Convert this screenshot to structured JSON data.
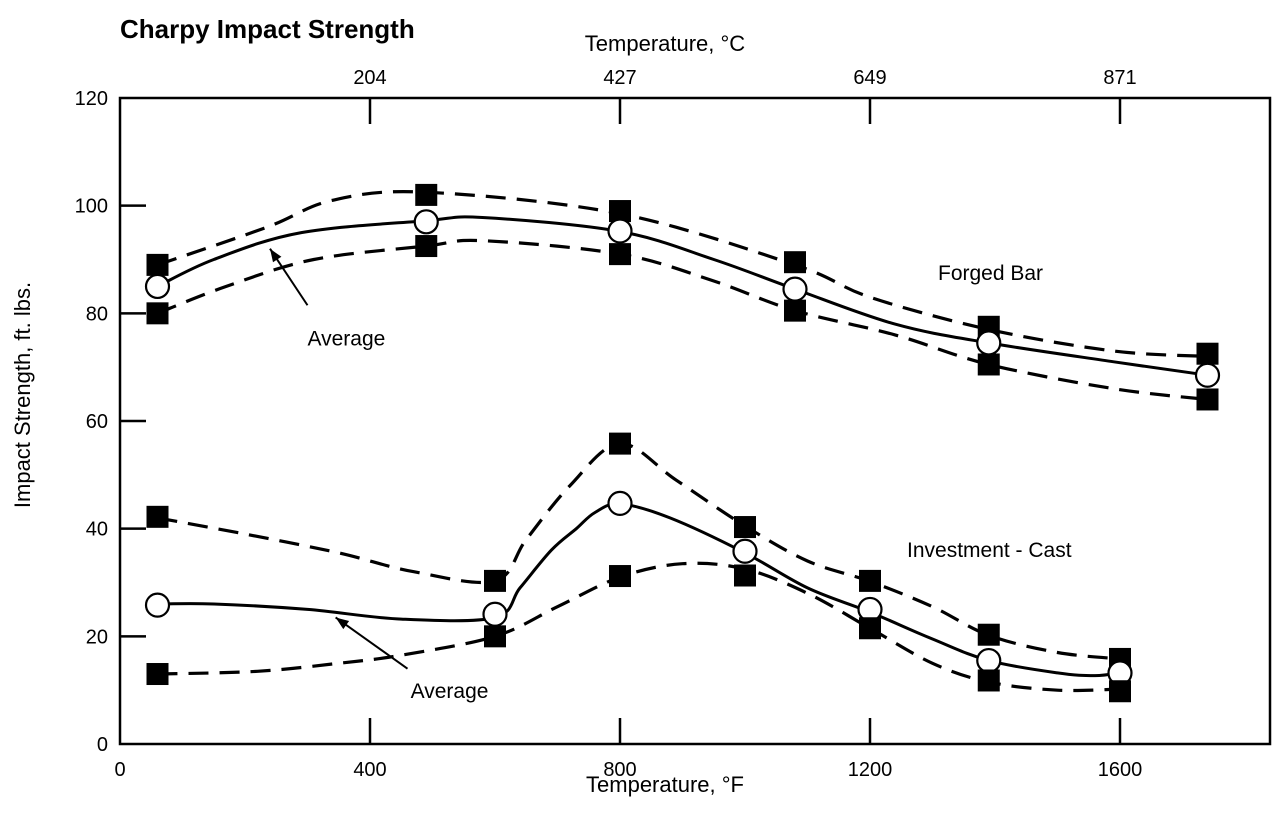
{
  "chart_data": {
    "type": "line",
    "title": "Charpy Impact Strength",
    "xlabel": "Temperature, °F",
    "x2label": "Temperature, °C",
    "ylabel": "Impact Strength, ft. lbs.",
    "xlim": [
      0,
      1840
    ],
    "ylim": [
      0,
      120
    ],
    "x_ticks": [
      0,
      400,
      800,
      1200,
      1600
    ],
    "y_ticks": [
      0,
      20,
      40,
      60,
      80,
      100,
      120
    ],
    "x2_ticks": [
      {
        "f": 400,
        "label": "204"
      },
      {
        "f": 800,
        "label": "427"
      },
      {
        "f": 1200,
        "label": "649"
      },
      {
        "f": 1600,
        "label": "871"
      }
    ],
    "grid": false,
    "groups": [
      {
        "label": "Forged Bar",
        "series": [
          {
            "style": "dashed",
            "points": [
              [
                60,
                89
              ],
              [
                235,
                96
              ],
              [
                340,
                101
              ],
              [
                490,
                102.5
              ],
              [
                800,
                98.5
              ],
              [
                1080,
                89
              ],
              [
                1200,
                83
              ],
              [
                1390,
                77
              ],
              [
                1590,
                73
              ],
              [
                1740,
                72
              ]
            ],
            "markers": [
              [
                60,
                89
              ],
              [
                490,
                102
              ],
              [
                800,
                99
              ],
              [
                1080,
                89.5
              ],
              [
                1390,
                77.5
              ],
              [
                1740,
                72.5
              ]
            ],
            "marker": "square"
          },
          {
            "style": "solid",
            "points": [
              [
                60,
                85
              ],
              [
                150,
                90
              ],
              [
                290,
                95
              ],
              [
                490,
                97.2
              ],
              [
                580,
                97.8
              ],
              [
                800,
                95.2
              ],
              [
                950,
                90
              ],
              [
                1080,
                84.5
              ],
              [
                1240,
                78
              ],
              [
                1390,
                74.5
              ],
              [
                1590,
                71
              ],
              [
                1740,
                68.5
              ]
            ],
            "markers": [
              [
                60,
                85
              ],
              [
                490,
                97
              ],
              [
                800,
                95.3
              ],
              [
                1080,
                84.5
              ],
              [
                1390,
                74.5
              ],
              [
                1740,
                68.5
              ]
            ],
            "marker": "circle"
          },
          {
            "style": "dashed",
            "points": [
              [
                60,
                80
              ],
              [
                170,
                85
              ],
              [
                310,
                90
              ],
              [
                490,
                92.5
              ],
              [
                580,
                93.5
              ],
              [
                800,
                91
              ],
              [
                950,
                86
              ],
              [
                1080,
                80.5
              ],
              [
                1240,
                76
              ],
              [
                1390,
                70.5
              ],
              [
                1590,
                66
              ],
              [
                1740,
                64
              ]
            ],
            "markers": [
              [
                60,
                80
              ],
              [
                490,
                92.5
              ],
              [
                800,
                91
              ],
              [
                1080,
                80.5
              ],
              [
                1390,
                70.5
              ],
              [
                1740,
                64
              ]
            ],
            "marker": "square"
          }
        ]
      },
      {
        "label": "Investment - Cast",
        "series": [
          {
            "style": "dashed",
            "points": [
              [
                60,
                42
              ],
              [
                200,
                39
              ],
              [
                350,
                35.5
              ],
              [
                470,
                32
              ],
              [
                600,
                30.3
              ],
              [
                650,
                38
              ],
              [
                720,
                48
              ],
              [
                800,
                55.8
              ],
              [
                890,
                49
              ],
              [
                1000,
                40.5
              ],
              [
                1100,
                34
              ],
              [
                1200,
                30.2
              ],
              [
                1300,
                25.5
              ],
              [
                1390,
                20.2
              ],
              [
                1500,
                17
              ],
              [
                1600,
                15.8
              ]
            ],
            "markers": [
              [
                60,
                42.2
              ],
              [
                600,
                30.3
              ],
              [
                800,
                55.8
              ],
              [
                1000,
                40.3
              ],
              [
                1200,
                30.3
              ],
              [
                1390,
                20.3
              ],
              [
                1600,
                15.8
              ]
            ],
            "marker": "square"
          },
          {
            "style": "solid",
            "points": [
              [
                60,
                26
              ],
              [
                150,
                26
              ],
              [
                300,
                25
              ],
              [
                450,
                23.2
              ],
              [
                600,
                23.5
              ],
              [
                640,
                29
              ],
              [
                690,
                36
              ],
              [
                730,
                40
              ],
              [
                760,
                43
              ],
              [
                800,
                44.6
              ],
              [
                880,
                42
              ],
              [
                1000,
                35.5
              ],
              [
                1100,
                29
              ],
              [
                1200,
                24.5
              ],
              [
                1300,
                19.5
              ],
              [
                1390,
                15.5
              ],
              [
                1500,
                13.2
              ],
              [
                1560,
                12.7
              ],
              [
                1600,
                13.2
              ]
            ],
            "markers": [
              [
                60,
                25.8
              ],
              [
                600,
                24.1
              ],
              [
                800,
                44.7
              ],
              [
                1000,
                35.8
              ],
              [
                1200,
                25
              ],
              [
                1390,
                15.5
              ],
              [
                1600,
                13.2
              ]
            ],
            "marker": "circle"
          },
          {
            "style": "dashed",
            "points": [
              [
                60,
                13
              ],
              [
                220,
                13.5
              ],
              [
                350,
                15
              ],
              [
                450,
                16.5
              ],
              [
                600,
                20
              ],
              [
                700,
                25.5
              ],
              [
                800,
                31
              ],
              [
                900,
                33.5
              ],
              [
                1000,
                32.5
              ],
              [
                1100,
                28
              ],
              [
                1200,
                21.5
              ],
              [
                1300,
                15
              ],
              [
                1390,
                11.5
              ],
              [
                1500,
                10
              ],
              [
                1600,
                10.2
              ]
            ],
            "markers": [
              [
                60,
                13
              ],
              [
                600,
                20
              ],
              [
                800,
                31.2
              ],
              [
                1000,
                31.3
              ],
              [
                1200,
                21.5
              ],
              [
                1390,
                11.8
              ],
              [
                1600,
                9.8
              ]
            ],
            "marker": "square"
          }
        ]
      }
    ],
    "annotations": [
      {
        "text": "Average",
        "label_x": 300,
        "label_y": 75.5,
        "arrow_from": [
          300,
          81.5
        ],
        "arrow_to": [
          240,
          92
        ]
      },
      {
        "text": "Average",
        "label_x": 465,
        "label_y": 10,
        "arrow_from": [
          460,
          14
        ],
        "arrow_to": [
          345,
          23.5
        ]
      }
    ]
  }
}
